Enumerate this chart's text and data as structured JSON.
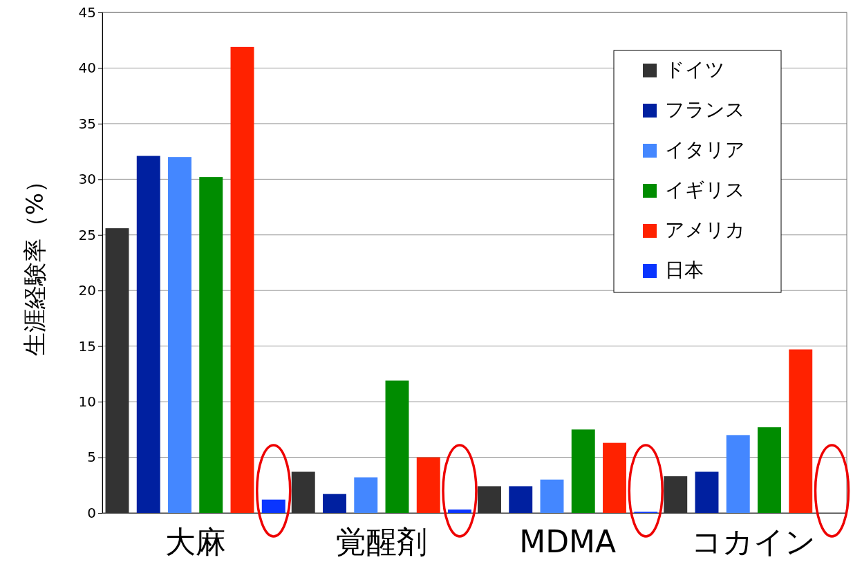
{
  "chart_data": {
    "type": "bar",
    "ylabel": "生涯経験率（%）",
    "categories": [
      "大麻",
      "覚醒剤",
      "MDMA",
      "コカイン"
    ],
    "series": [
      {
        "name": "ドイツ",
        "color": "#333333",
        "values": [
          25.6,
          3.7,
          2.4,
          3.3
        ]
      },
      {
        "name": "フランス",
        "color": "#0020a0",
        "values": [
          32.1,
          1.7,
          2.4,
          3.7
        ]
      },
      {
        "name": "イタリア",
        "color": "#4487ff",
        "values": [
          32.0,
          3.2,
          3.0,
          7.0
        ]
      },
      {
        "name": "イギリス",
        "color": "#008c00",
        "values": [
          30.2,
          11.9,
          7.5,
          7.7
        ]
      },
      {
        "name": "アメリカ",
        "color": "#ff2200",
        "values": [
          41.9,
          5.0,
          6.3,
          14.7
        ]
      },
      {
        "name": "日本",
        "color": "#0a35ff",
        "values": [
          1.2,
          0.3,
          0.1,
          0
        ]
      }
    ],
    "ylim": [
      0,
      45
    ],
    "yticks": [
      0,
      5,
      10,
      15,
      20,
      25,
      30,
      35,
      40,
      45
    ],
    "grid": "y",
    "legend": "top right"
  }
}
